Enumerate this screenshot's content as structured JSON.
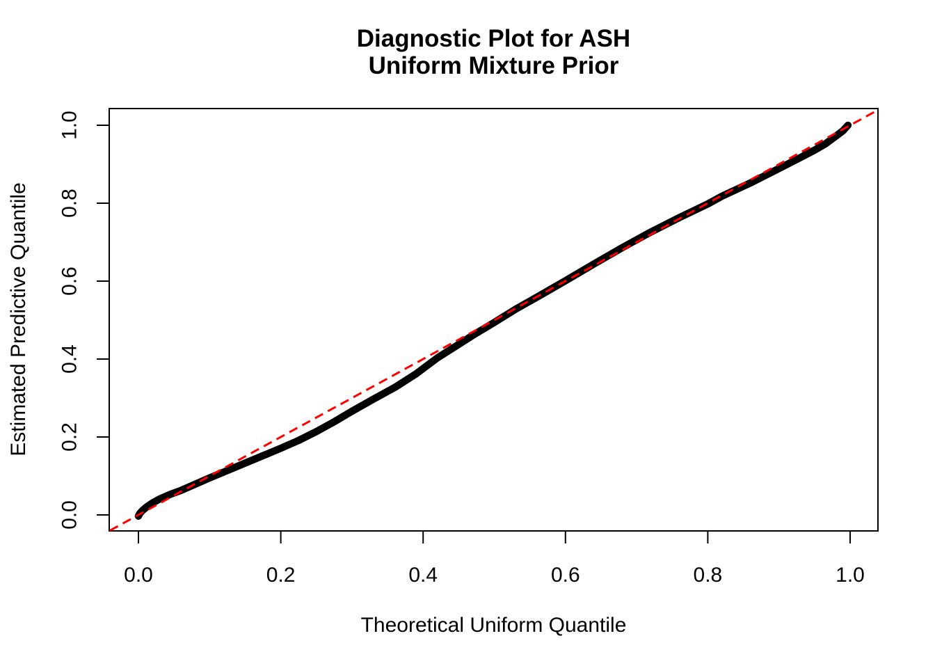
{
  "title": {
    "line1": "Diagnostic Plot for ASH",
    "line2": "Uniform Mixture Prior"
  },
  "x_axis": {
    "label": "Theoretical Uniform Quantile",
    "tick_labels": [
      "0.0",
      "0.2",
      "0.4",
      "0.6",
      "0.8",
      "1.0"
    ],
    "tick_values": [
      0.0,
      0.2,
      0.4,
      0.6,
      0.8,
      1.0
    ]
  },
  "y_axis": {
    "label": "Estimated Predictive Quantile",
    "tick_labels": [
      "0.0",
      "0.2",
      "0.4",
      "0.6",
      "0.8",
      "1.0"
    ],
    "tick_values": [
      0.0,
      0.2,
      0.4,
      0.6,
      0.8,
      1.0
    ]
  },
  "colors": {
    "curve": "#000000",
    "reference_line": "#FF0000",
    "axis": "#000000",
    "background": "#FFFFFF"
  },
  "chart_data": {
    "type": "scatter",
    "title": "Diagnostic Plot for ASH / Uniform Mixture Prior",
    "xlabel": "Theoretical Uniform Quantile",
    "ylabel": "Estimated Predictive Quantile",
    "xlim": [
      -0.04,
      1.04
    ],
    "ylim": [
      -0.04,
      1.04
    ],
    "x_ticks": [
      0.0,
      0.2,
      0.4,
      0.6,
      0.8,
      1.0
    ],
    "y_ticks": [
      0.0,
      0.2,
      0.4,
      0.6,
      0.8,
      1.0
    ],
    "grid": false,
    "legend": "none",
    "series": [
      {
        "name": "estimated-vs-theoretical-quantiles",
        "style": "thick-point-curve",
        "color": "#000000",
        "x": [
          0.0,
          0.002,
          0.006,
          0.012,
          0.02,
          0.03,
          0.045,
          0.06,
          0.08,
          0.1,
          0.125,
          0.15,
          0.175,
          0.2,
          0.225,
          0.25,
          0.275,
          0.3,
          0.33,
          0.36,
          0.39,
          0.42,
          0.44,
          0.47,
          0.5,
          0.53,
          0.56,
          0.6,
          0.64,
          0.68,
          0.72,
          0.76,
          0.8,
          0.82,
          0.86,
          0.9,
          0.93,
          0.95,
          0.965,
          0.98,
          0.99,
          0.997
        ],
        "y": [
          -0.003,
          0.004,
          0.012,
          0.021,
          0.031,
          0.041,
          0.053,
          0.063,
          0.079,
          0.095,
          0.114,
          0.133,
          0.152,
          0.171,
          0.191,
          0.214,
          0.239,
          0.266,
          0.297,
          0.327,
          0.362,
          0.403,
          0.426,
          0.461,
          0.494,
          0.528,
          0.559,
          0.601,
          0.644,
          0.686,
          0.726,
          0.763,
          0.798,
          0.818,
          0.852,
          0.889,
          0.917,
          0.936,
          0.952,
          0.972,
          0.986,
          1.0
        ]
      },
      {
        "name": "identity-reference-line",
        "style": "dashed-line",
        "color": "#FF0000",
        "x": [
          -0.04,
          1.04
        ],
        "y": [
          -0.04,
          1.04
        ]
      }
    ]
  }
}
